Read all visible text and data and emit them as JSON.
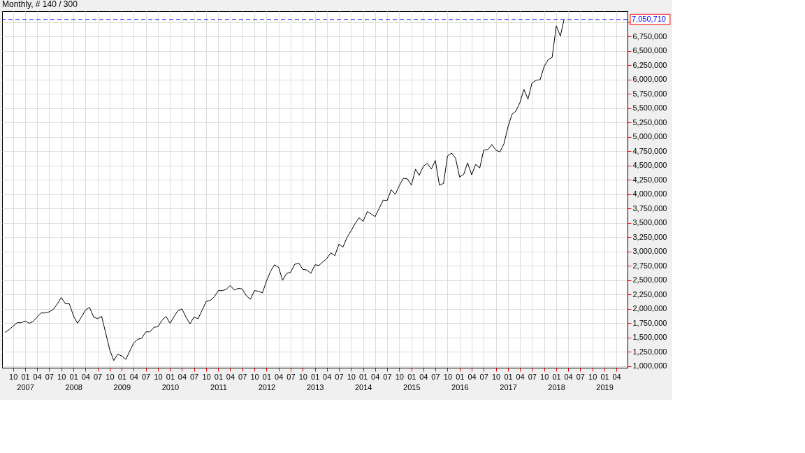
{
  "chart_data": {
    "type": "line",
    "title": "Monthly, # 140 / 300",
    "color": "#000000",
    "x": [
      "2006-08",
      "2006-09",
      "2006-10",
      "2006-11",
      "2006-12",
      "2007-01",
      "2007-02",
      "2007-03",
      "2007-04",
      "2007-05",
      "2007-06",
      "2007-07",
      "2007-08",
      "2007-09",
      "2007-10",
      "2007-11",
      "2007-12",
      "2008-01",
      "2008-02",
      "2008-03",
      "2008-04",
      "2008-05",
      "2008-06",
      "2008-07",
      "2008-08",
      "2008-09",
      "2008-10",
      "2008-11",
      "2008-12",
      "2009-01",
      "2009-02",
      "2009-03",
      "2009-04",
      "2009-05",
      "2009-06",
      "2009-07",
      "2009-08",
      "2009-09",
      "2009-10",
      "2009-11",
      "2009-12",
      "2010-01",
      "2010-02",
      "2010-03",
      "2010-04",
      "2010-05",
      "2010-06",
      "2010-07",
      "2010-08",
      "2010-09",
      "2010-10",
      "2010-11",
      "2010-12",
      "2011-01",
      "2011-02",
      "2011-03",
      "2011-04",
      "2011-05",
      "2011-06",
      "2011-07",
      "2011-08",
      "2011-09",
      "2011-10",
      "2011-11",
      "2011-12",
      "2012-01",
      "2012-02",
      "2012-03",
      "2012-04",
      "2012-05",
      "2012-06",
      "2012-07",
      "2012-08",
      "2012-09",
      "2012-10",
      "2012-11",
      "2012-12",
      "2013-01",
      "2013-02",
      "2013-03",
      "2013-04",
      "2013-05",
      "2013-06",
      "2013-07",
      "2013-08",
      "2013-09",
      "2013-10",
      "2013-11",
      "2013-12",
      "2014-01",
      "2014-02",
      "2014-03",
      "2014-04",
      "2014-05",
      "2014-06",
      "2014-07",
      "2014-08",
      "2014-09",
      "2014-10",
      "2014-11",
      "2014-12",
      "2015-01",
      "2015-02",
      "2015-03",
      "2015-04",
      "2015-05",
      "2015-06",
      "2015-07",
      "2015-08",
      "2015-09",
      "2015-10",
      "2015-11",
      "2015-12",
      "2016-01",
      "2016-02",
      "2016-03",
      "2016-04",
      "2016-05",
      "2016-06",
      "2016-07",
      "2016-08",
      "2016-09",
      "2016-10",
      "2016-11",
      "2016-12",
      "2017-01",
      "2017-02",
      "2017-03",
      "2017-04",
      "2017-05",
      "2017-06",
      "2017-07",
      "2017-08",
      "2017-09",
      "2017-10",
      "2017-11",
      "2017-12",
      "2018-01",
      "2018-02",
      "2018-03"
    ],
    "values": [
      1590000,
      1640000,
      1700000,
      1760000,
      1760000,
      1790000,
      1750000,
      1780000,
      1860000,
      1930000,
      1930000,
      1950000,
      1990000,
      2090000,
      2200000,
      2090000,
      2090000,
      1880000,
      1750000,
      1860000,
      1980000,
      2030000,
      1860000,
      1830000,
      1870000,
      1580000,
      1290000,
      1100000,
      1210000,
      1180000,
      1120000,
      1260000,
      1410000,
      1470000,
      1490000,
      1600000,
      1600000,
      1680000,
      1690000,
      1800000,
      1870000,
      1750000,
      1870000,
      1970000,
      2000000,
      1860000,
      1740000,
      1860000,
      1830000,
      1980000,
      2130000,
      2150000,
      2210000,
      2320000,
      2320000,
      2340000,
      2410000,
      2330000,
      2360000,
      2350000,
      2230000,
      2170000,
      2320000,
      2310000,
      2280000,
      2490000,
      2660000,
      2770000,
      2730000,
      2500000,
      2620000,
      2640000,
      2780000,
      2800000,
      2690000,
      2680000,
      2620000,
      2770000,
      2760000,
      2820000,
      2880000,
      2980000,
      2930000,
      3130000,
      3080000,
      3250000,
      3360000,
      3490000,
      3590000,
      3530000,
      3700000,
      3660000,
      3610000,
      3750000,
      3900000,
      3890000,
      4080000,
      4000000,
      4150000,
      4280000,
      4270000,
      4160000,
      4440000,
      4330000,
      4490000,
      4540000,
      4440000,
      4590000,
      4160000,
      4190000,
      4670000,
      4720000,
      4630000,
      4300000,
      4350000,
      4550000,
      4340000,
      4520000,
      4460000,
      4770000,
      4780000,
      4870000,
      4770000,
      4740000,
      4880000,
      5180000,
      5400000,
      5450000,
      5600000,
      5830000,
      5660000,
      5940000,
      5990000,
      6000000,
      6230000,
      6350000,
      6390000,
      6940000,
      6760000,
      7050710
    ],
    "xlim": [
      "2006-07-10",
      "2019-06-24"
    ],
    "xticks": [
      {
        "value": "2006-10",
        "label": "10"
      },
      {
        "value": "2007-01",
        "label": "01\n2007"
      },
      {
        "value": "2007-04",
        "label": "04"
      },
      {
        "value": "2007-07",
        "label": "07"
      },
      {
        "value": "2007-10",
        "label": "10"
      },
      {
        "value": "2008-01",
        "label": "01\n2008"
      },
      {
        "value": "2008-04",
        "label": "04"
      },
      {
        "value": "2008-07",
        "label": "07"
      },
      {
        "value": "2008-10",
        "label": "10"
      },
      {
        "value": "2009-01",
        "label": "01\n2009"
      },
      {
        "value": "2009-04",
        "label": "04"
      },
      {
        "value": "2009-07",
        "label": "07"
      },
      {
        "value": "2009-10",
        "label": "10"
      },
      {
        "value": "2010-01",
        "label": "01\n2010"
      },
      {
        "value": "2010-04",
        "label": "04"
      },
      {
        "value": "2010-07",
        "label": "07"
      },
      {
        "value": "2010-10",
        "label": "10"
      },
      {
        "value": "2011-01",
        "label": "01\n2011"
      },
      {
        "value": "2011-04",
        "label": "04"
      },
      {
        "value": "2011-07",
        "label": "07"
      },
      {
        "value": "2011-10",
        "label": "10"
      },
      {
        "value": "2012-01",
        "label": "01\n2012"
      },
      {
        "value": "2012-04",
        "label": "04"
      },
      {
        "value": "2012-07",
        "label": "07"
      },
      {
        "value": "2012-10",
        "label": "10"
      },
      {
        "value": "2013-01",
        "label": "01\n2013"
      },
      {
        "value": "2013-04",
        "label": "04"
      },
      {
        "value": "2013-07",
        "label": "07"
      },
      {
        "value": "2013-10",
        "label": "10"
      },
      {
        "value": "2014-01",
        "label": "01\n2014"
      },
      {
        "value": "2014-04",
        "label": "04"
      },
      {
        "value": "2014-07",
        "label": "07"
      },
      {
        "value": "2014-10",
        "label": "10"
      },
      {
        "value": "2015-01",
        "label": "01\n2015"
      },
      {
        "value": "2015-04",
        "label": "04"
      },
      {
        "value": "2015-07",
        "label": "07"
      },
      {
        "value": "2015-10",
        "label": "10"
      },
      {
        "value": "2016-01",
        "label": "01\n2016"
      },
      {
        "value": "2016-04",
        "label": "04"
      },
      {
        "value": "2016-07",
        "label": "07"
      },
      {
        "value": "2016-10",
        "label": "10"
      },
      {
        "value": "2017-01",
        "label": "01\n2017"
      },
      {
        "value": "2017-04",
        "label": "04"
      },
      {
        "value": "2017-07",
        "label": "07"
      },
      {
        "value": "2017-10",
        "label": "10"
      },
      {
        "value": "2018-01",
        "label": "01\n2018"
      },
      {
        "value": "2018-04",
        "label": "04"
      },
      {
        "value": "2018-07",
        "label": "07"
      },
      {
        "value": "2018-10",
        "label": "10"
      },
      {
        "value": "2019-01",
        "label": "01\n2019"
      },
      {
        "value": "2019-04",
        "label": "04"
      }
    ],
    "ylim": [
      975000,
      7195000
    ],
    "yticks": [
      {
        "value": 1000000,
        "label": "1,000,000"
      },
      {
        "value": 1250000,
        "label": "1,250,000"
      },
      {
        "value": 1500000,
        "label": "1,500,000"
      },
      {
        "value": 1750000,
        "label": "1,750,000"
      },
      {
        "value": 2000000,
        "label": "2,000,000"
      },
      {
        "value": 2250000,
        "label": "2,250,000"
      },
      {
        "value": 2500000,
        "label": "2,500,000"
      },
      {
        "value": 2750000,
        "label": "2,750,000"
      },
      {
        "value": 3000000,
        "label": "3,000,000"
      },
      {
        "value": 3250000,
        "label": "3,250,000"
      },
      {
        "value": 3500000,
        "label": "3,500,000"
      },
      {
        "value": 3750000,
        "label": "3,750,000"
      },
      {
        "value": 4000000,
        "label": "4,000,000"
      },
      {
        "value": 4250000,
        "label": "4,250,000"
      },
      {
        "value": 4500000,
        "label": "4,500,000"
      },
      {
        "value": 4750000,
        "label": "4,750,000"
      },
      {
        "value": 5000000,
        "label": "5,000,000"
      },
      {
        "value": 5250000,
        "label": "5,250,000"
      },
      {
        "value": 5500000,
        "label": "5,500,000"
      },
      {
        "value": 5750000,
        "label": "5,750,000"
      },
      {
        "value": 6000000,
        "label": "6,000,000"
      },
      {
        "value": 6250000,
        "label": "6,250,000"
      },
      {
        "value": 6500000,
        "label": "6,500,000"
      },
      {
        "value": 6750000,
        "label": "6,750,000"
      },
      {
        "value": 7000000,
        "label": null
      }
    ],
    "grid": true,
    "ref_lines": [
      {
        "axis": "y",
        "value": 7050710,
        "label": "7,050,710",
        "color": "#0000ff",
        "line_style": "dashed"
      }
    ]
  }
}
